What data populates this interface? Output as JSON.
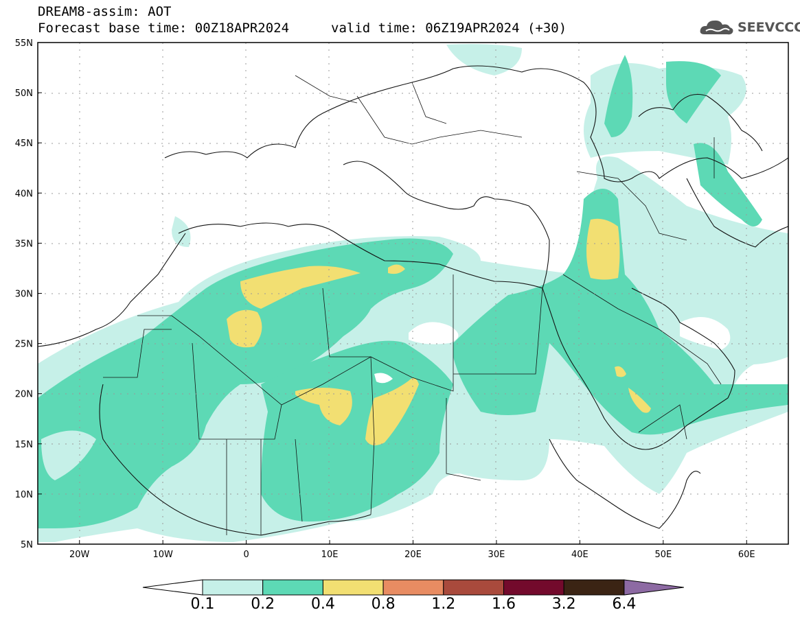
{
  "header": {
    "title": "DREAM8-assim: AOT",
    "base_time": "Forecast base time: 00Z18APR2024",
    "valid_time": "valid time: 06Z19APR2024 (+30)"
  },
  "logo": {
    "text": "SEEVCCC",
    "icon": "cloud-icon"
  },
  "map": {
    "lat_range": [
      5,
      55
    ],
    "lon_range": [
      -25,
      65
    ],
    "lat_ticks": [
      "5N",
      "10N",
      "15N",
      "20N",
      "25N",
      "30N",
      "35N",
      "40N",
      "45N",
      "50N",
      "55N"
    ],
    "lon_ticks": [
      "20W",
      "10W",
      "0",
      "10E",
      "20E",
      "30E",
      "40E",
      "50E",
      "60E"
    ],
    "gridlines": true
  },
  "colorbar": {
    "labels": [
      "0.1",
      "0.2",
      "0.4",
      "0.8",
      "1.2",
      "1.6",
      "3.2",
      "6.4"
    ],
    "colors": [
      "#ffffff",
      "#c6f0e8",
      "#5dd9b5",
      "#f2df72",
      "#e88c62",
      "#a94a3c",
      "#730a2c",
      "#3b2414",
      "#8d6aa3"
    ]
  }
}
